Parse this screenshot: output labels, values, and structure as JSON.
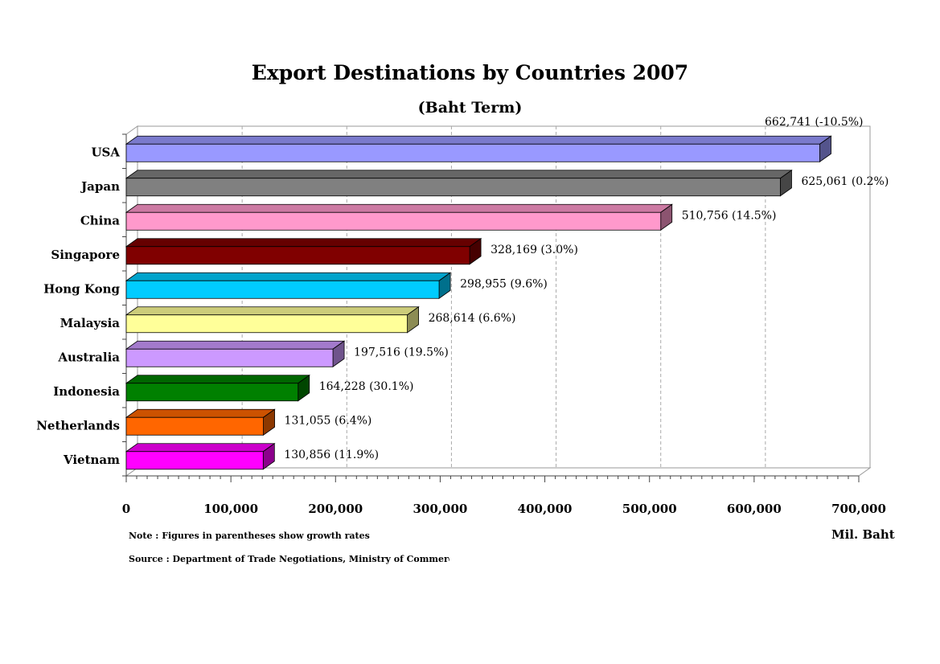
{
  "chart_data": {
    "type": "bar",
    "orientation": "horizontal",
    "title": "Export Destinations by Countries 2007",
    "subtitle": "(Baht Term)",
    "categories": [
      "USA",
      "Japan",
      "China",
      "Singapore",
      "Hong Kong",
      "Malaysia",
      "Australia",
      "Indonesia",
      "Netherlands",
      "Vietnam"
    ],
    "values": [
      662741,
      625061,
      510756,
      328169,
      298955,
      268614,
      197516,
      164228,
      131055,
      130856
    ],
    "data_labels": [
      "662,741 (-10.5%)",
      "625,061 (0.2%)",
      "510,756 (14.5%)",
      "328,169 (3.0%)",
      "298,955 (9.6%)",
      "268,614 (6.6%)",
      "197,516 (19.5%)",
      "164,228 (30.1%)",
      "131,055 (6.4%)",
      "130,856 (11.9%)"
    ],
    "colors": [
      "#9999ff",
      "#808080",
      "#ff99cc",
      "#800000",
      "#00ccff",
      "#ffff99",
      "#cc99ff",
      "#008000",
      "#ff6600",
      "#ff00ff"
    ],
    "xlim": [
      0,
      700000
    ],
    "x_ticks": [
      0,
      100000,
      200000,
      300000,
      400000,
      500000,
      600000,
      700000
    ],
    "x_tick_labels": [
      "0",
      "100,000",
      "200,000",
      "300,000",
      "400,000",
      "500,000",
      "600,000",
      "700,000"
    ],
    "xlabel": "Mil. Baht",
    "ylabel": "",
    "grid": "vertical dashed",
    "style": "3d",
    "note": "Note : Figures in parentheses show growth rates",
    "source": "Source : Department of Trade Negotiations, Ministry of Commerce"
  }
}
